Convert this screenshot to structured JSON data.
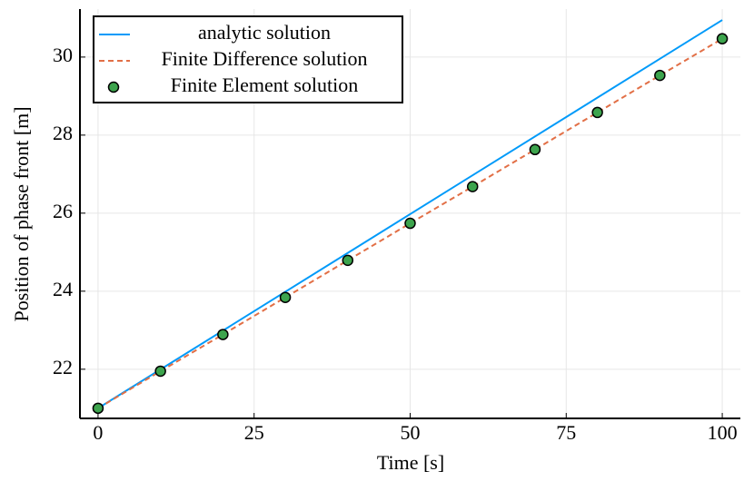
{
  "chart_data": {
    "type": "line",
    "x_label": "Time [s]",
    "y_label": "Position of phase front [m]",
    "xlim": [
      -2.9,
      102.9
    ],
    "xticks": [
      0,
      25,
      50,
      75,
      100
    ],
    "ylim": [
      20.74,
      31.23
    ],
    "yticks": [
      22,
      24,
      26,
      28,
      30
    ],
    "grid": true,
    "legend": "top-left",
    "series": [
      {
        "name": "analytic solution",
        "color": "#009af9",
        "style": "solid",
        "x": [
          0,
          100
        ],
        "values": [
          21,
          30.95
        ]
      },
      {
        "name": "Finite Difference solution",
        "color": "#e26f46",
        "style": "dashed",
        "x": [
          0,
          10,
          20,
          30,
          40,
          50,
          60,
          70,
          80,
          90,
          100
        ],
        "values": [
          21,
          21.95,
          22.89,
          23.84,
          24.79,
          25.74,
          26.68,
          27.63,
          28.58,
          29.53,
          30.47
        ]
      },
      {
        "name": "Finite Element solution",
        "color": "#3da44d",
        "style": "markers",
        "x": [
          0,
          10,
          20,
          30,
          40,
          50,
          60,
          70,
          80,
          90,
          100
        ],
        "values": [
          21,
          21.95,
          22.89,
          23.84,
          24.79,
          25.74,
          26.68,
          27.63,
          28.58,
          29.53,
          30.47
        ]
      }
    ]
  }
}
